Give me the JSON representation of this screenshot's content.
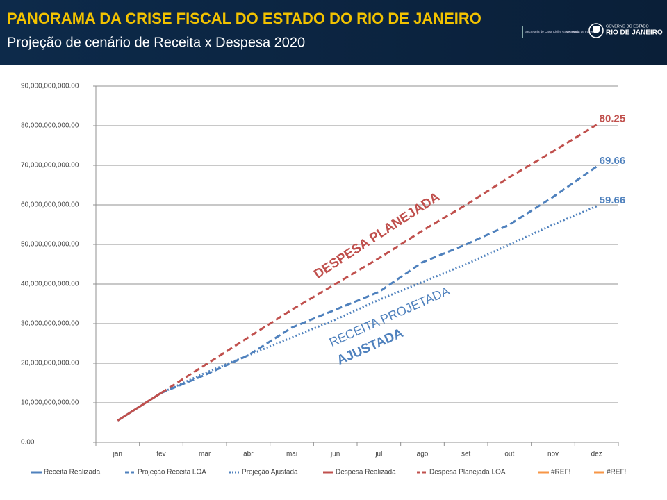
{
  "header": {
    "title": "PANORAMA DA CRISE FISCAL DO ESTADO DO RIO DE JANEIRO",
    "subtitle": "Projeção de cenário de Receita x Despesa 2020",
    "logos": [
      "Secretaria de Casa Civil e Governança",
      "Secretaria de Fazenda",
      "GOVERNO DO ESTADO",
      "RIO DE JANEIRO"
    ]
  },
  "chart_data": {
    "type": "line",
    "categories": [
      "jan",
      "fev",
      "mar",
      "abr",
      "mai",
      "jun",
      "jul",
      "ago",
      "set",
      "out",
      "nov",
      "dez"
    ],
    "ylim": [
      0,
      90000000000
    ],
    "yticks": [
      {
        "value": 0,
        "label": "0.00"
      },
      {
        "value": 10000000000,
        "label": "10,000,000,000.00"
      },
      {
        "value": 20000000000,
        "label": "20,000,000,000.00"
      },
      {
        "value": 30000000000,
        "label": "30,000,000,000.00"
      },
      {
        "value": 40000000000,
        "label": "40,000,000,000.00"
      },
      {
        "value": 50000000000,
        "label": "50,000,000,000.00"
      },
      {
        "value": 60000000000,
        "label": "60,000,000,000.00"
      },
      {
        "value": 70000000000,
        "label": "70,000,000,000.00"
      },
      {
        "value": 80000000000,
        "label": "80,000,000,000.00"
      },
      {
        "value": 90000000000,
        "label": "90,000,000,000.00"
      }
    ],
    "grid": true,
    "legend": "bottom",
    "series": [
      {
        "name": "Receita Realizada",
        "color": "#4f81bd",
        "style": "solid",
        "values": [
          5500000000,
          12500000000,
          null,
          null,
          null,
          null,
          null,
          null,
          null,
          null,
          null,
          null
        ]
      },
      {
        "name": "Projeção Receita LOA",
        "color": "#4f81bd",
        "style": "dashed",
        "values": [
          null,
          12500000000,
          17000000000,
          22000000000,
          29000000000,
          33500000000,
          38000000000,
          45500000000,
          50000000000,
          55000000000,
          62000000000,
          69660000000
        ],
        "value_labels": [
          null,
          null,
          null,
          null,
          null,
          null,
          null,
          null,
          null,
          null,
          null,
          "69.66"
        ]
      },
      {
        "name": "Projeção Ajustada",
        "color": "#4f81bd",
        "style": "dotted",
        "values": [
          null,
          12500000000,
          17500000000,
          22000000000,
          26500000000,
          31000000000,
          36000000000,
          40500000000,
          45000000000,
          50000000000,
          55000000000,
          59660000000
        ],
        "value_labels": [
          null,
          null,
          null,
          null,
          null,
          null,
          null,
          null,
          null,
          null,
          null,
          "59.66"
        ]
      },
      {
        "name": "Despesa Realizada",
        "color": "#c0504d",
        "style": "solid",
        "values": [
          5500000000,
          12500000000,
          null,
          null,
          null,
          null,
          null,
          null,
          null,
          null,
          null,
          null
        ]
      },
      {
        "name": "Despesa Planejada LOA",
        "color": "#c0504d",
        "style": "dashed",
        "values": [
          null,
          12500000000,
          19500000000,
          26500000000,
          33500000000,
          40000000000,
          46500000000,
          53500000000,
          60000000000,
          67000000000,
          73500000000,
          80250000000
        ],
        "value_labels": [
          null,
          null,
          null,
          null,
          null,
          null,
          null,
          null,
          null,
          null,
          null,
          "80.25"
        ]
      },
      {
        "name": "#REF!",
        "color": "#f79646",
        "style": "solid",
        "values": [
          null,
          null,
          null,
          null,
          null,
          null,
          null,
          null,
          null,
          null,
          null,
          null
        ]
      },
      {
        "name": "#REF!",
        "color": "#f79646",
        "style": "solid",
        "values": [
          null,
          null,
          null,
          null,
          null,
          null,
          null,
          null,
          null,
          null,
          null,
          null
        ]
      }
    ],
    "annotations": [
      {
        "text": "DESPESA PLANEJADA",
        "color": "#c0504d"
      },
      {
        "text": "RECEITA PROJETADA",
        "color": "#4f81bd"
      },
      {
        "text": "AJUSTADA",
        "color": "#4f81bd"
      }
    ]
  }
}
